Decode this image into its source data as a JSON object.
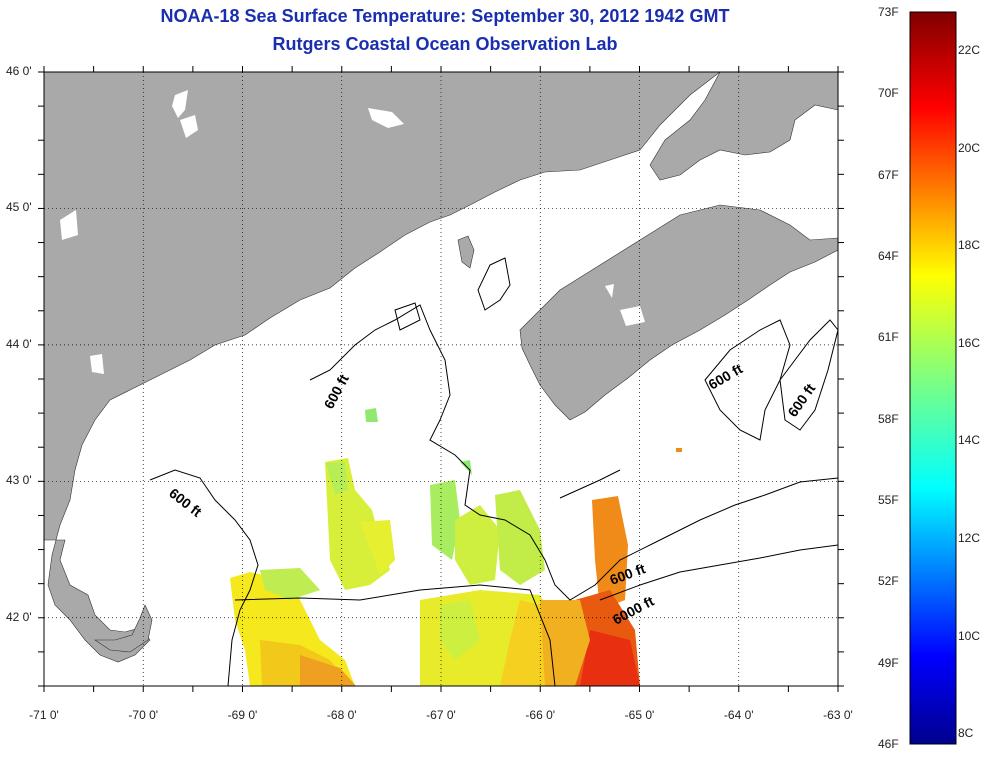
{
  "title": "NOAA-18 Sea Surface Temperature:  September 30, 2012 1942 GMT",
  "subtitle": "Rutgers Coastal Ocean Observation Lab",
  "lat_labels": [
    {
      "text": "46 0'",
      "lat": 46
    },
    {
      "text": "45 0'",
      "lat": 45
    },
    {
      "text": "44 0'",
      "lat": 44
    },
    {
      "text": "43 0'",
      "lat": 43
    },
    {
      "text": "42 0'",
      "lat": 42
    }
  ],
  "lon_labels": [
    {
      "text": "-71 0'",
      "lon": -71
    },
    {
      "text": "-70 0'",
      "lon": -70
    },
    {
      "text": "-69 0'",
      "lon": -69
    },
    {
      "text": "-68 0'",
      "lon": -68
    },
    {
      "text": "-67 0'",
      "lon": -67
    },
    {
      "text": "-66 0'",
      "lon": -66
    },
    {
      "text": "-65 0'",
      "lon": -65
    },
    {
      "text": "-64 0'",
      "lon": -64
    },
    {
      "text": "-63 0'",
      "lon": -63
    }
  ],
  "map_extent": {
    "lon_min": -71,
    "lon_max": -63,
    "lat_min": 41.5,
    "lat_max": 46
  },
  "contour_labels": [
    "600 ft",
    "600 ft",
    "600 ft",
    "600 ft",
    "600 ft",
    "6000 ft"
  ],
  "colorbar": {
    "f_labels": [
      "73F",
      "70F",
      "67F",
      "64F",
      "61F",
      "58F",
      "55F",
      "52F",
      "49F",
      "46F"
    ],
    "c_labels": [
      "22C",
      "20C",
      "18C",
      "16C",
      "14C",
      "12C",
      "10C",
      "8C"
    ],
    "range_f": [
      46,
      73
    ]
  },
  "colors": {
    "land": "#a9a9a9",
    "water_nodata": "#ffffff",
    "title": "#1a2fb0"
  }
}
